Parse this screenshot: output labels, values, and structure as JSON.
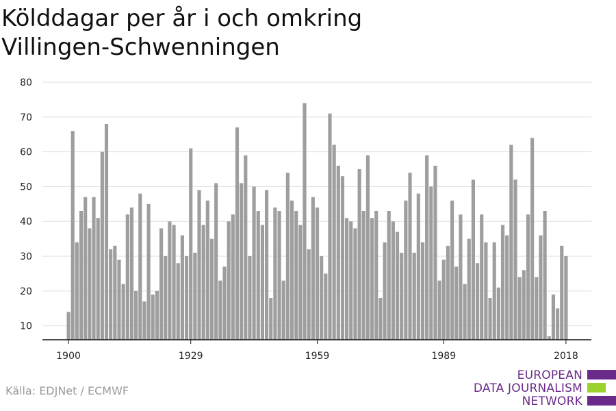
{
  "title_lines": [
    "Kölddagar per år i och omkring",
    "Villingen-Schwenningen"
  ],
  "source": "Källa: EDJNet / ECMWF",
  "logo": {
    "lines": [
      "EUROPEAN",
      "DATA JOURNALISM",
      "NETWORK"
    ],
    "colors": {
      "text": "#6a2a8a",
      "purple": "#6a2a8a",
      "green": "#9bd22c"
    }
  },
  "colors": {
    "bar": "#9e9e9e",
    "grid": "#dddddd",
    "axis": "#111111",
    "text": "#222222"
  },
  "chart_data": {
    "type": "bar",
    "title": "Kölddagar per år i och omkring Villingen-Schwenningen",
    "xlabel": "",
    "ylabel": "",
    "ylim": [
      6,
      80
    ],
    "yticks": [
      10,
      20,
      30,
      40,
      50,
      60,
      70,
      80
    ],
    "xticks": [
      1900,
      1929,
      1959,
      1989,
      2018
    ],
    "grid": true,
    "x_start": 1900,
    "x": [
      1900,
      1901,
      1902,
      1903,
      1904,
      1905,
      1906,
      1907,
      1908,
      1909,
      1910,
      1911,
      1912,
      1913,
      1914,
      1915,
      1916,
      1917,
      1918,
      1919,
      1920,
      1921,
      1922,
      1923,
      1924,
      1925,
      1926,
      1927,
      1928,
      1929,
      1930,
      1931,
      1932,
      1933,
      1934,
      1935,
      1936,
      1937,
      1938,
      1939,
      1940,
      1941,
      1942,
      1943,
      1944,
      1945,
      1946,
      1947,
      1948,
      1949,
      1950,
      1951,
      1952,
      1953,
      1954,
      1955,
      1956,
      1957,
      1958,
      1959,
      1960,
      1961,
      1962,
      1963,
      1964,
      1965,
      1966,
      1967,
      1968,
      1969,
      1970,
      1971,
      1972,
      1973,
      1974,
      1975,
      1976,
      1977,
      1978,
      1979,
      1980,
      1981,
      1982,
      1983,
      1984,
      1985,
      1986,
      1987,
      1988,
      1989,
      1990,
      1991,
      1992,
      1993,
      1994,
      1995,
      1996,
      1997,
      1998,
      1999,
      2000,
      2001,
      2002,
      2003,
      2004,
      2005,
      2006,
      2007,
      2008,
      2009,
      2010,
      2011,
      2012,
      2013,
      2014,
      2015,
      2016,
      2017,
      2018
    ],
    "values": [
      14,
      66,
      34,
      43,
      47,
      38,
      47,
      41,
      60,
      68,
      32,
      33,
      29,
      22,
      42,
      44,
      20,
      48,
      17,
      45,
      19,
      20,
      38,
      30,
      40,
      39,
      28,
      36,
      30,
      61,
      31,
      49,
      39,
      46,
      35,
      51,
      23,
      27,
      40,
      42,
      67,
      51,
      59,
      30,
      50,
      43,
      39,
      49,
      18,
      44,
      43,
      23,
      54,
      46,
      43,
      39,
      74,
      32,
      47,
      44,
      30,
      25,
      71,
      62,
      56,
      53,
      41,
      40,
      38,
      55,
      43,
      59,
      41,
      43,
      18,
      34,
      43,
      40,
      37,
      31,
      46,
      54,
      31,
      48,
      34,
      59,
      50,
      56,
      23,
      29,
      33,
      46,
      27,
      42,
      22,
      35,
      52,
      28,
      42,
      34,
      18,
      34,
      21,
      39,
      36,
      62,
      52,
      24,
      26,
      42,
      64,
      24,
      36,
      43,
      7,
      19,
      15,
      33,
      30
    ]
  }
}
